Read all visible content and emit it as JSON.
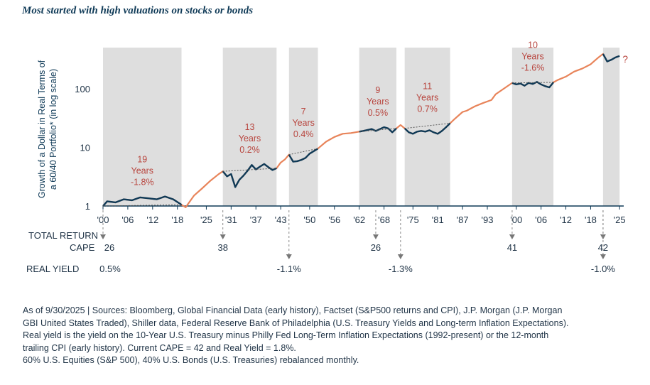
{
  "title": "Most started with high valuations on stocks or bonds",
  "chart_data": {
    "type": "line",
    "ylabel": "Growth of a Dollar in Real Terms of a 60/40 Portfolio* (in log scale)",
    "ylabel_lines": [
      "Growth of a Dollar in Real Terms of",
      "a 60/40 Portfolio* (in log scale)"
    ],
    "yscale": "log",
    "ylim": [
      1,
      500
    ],
    "xlim": [
      1900,
      2026
    ],
    "x_tick_labels": [
      "'00",
      "'06",
      "'12",
      "'18",
      "'25",
      "'31",
      "'37",
      "'43",
      "'50",
      "'56",
      "'62",
      "'68",
      "'75",
      "'81",
      "'87",
      "'93",
      "'00",
      "'06",
      "'12",
      "'18",
      "'25"
    ],
    "x_tick_years": [
      1900,
      1906,
      1912,
      1918,
      1925,
      1931,
      1937,
      1943,
      1950,
      1956,
      1962,
      1968,
      1975,
      1981,
      1987,
      1993,
      2000,
      2006,
      2012,
      2018,
      2025
    ],
    "y_ticks": [
      1,
      10,
      100
    ],
    "y_tick_labels": [
      "1",
      "10",
      "100"
    ],
    "series": [
      {
        "color": "#e8845a",
        "x": [
          1900,
          1901,
          1903,
          1905,
          1907,
          1909,
          1911,
          1913,
          1915,
          1917,
          1919,
          1920,
          1922,
          1924,
          1926,
          1928,
          1929,
          1930,
          1931,
          1932,
          1933,
          1934,
          1935,
          1936,
          1937,
          1938,
          1939,
          1940,
          1941,
          1942,
          1943,
          1944,
          1945,
          1946,
          1947,
          1948,
          1949,
          1950,
          1952,
          1954,
          1956,
          1958,
          1960,
          1962,
          1963,
          1965,
          1966,
          1968,
          1969,
          1970,
          1971,
          1972,
          1973,
          1974,
          1975,
          1976,
          1977,
          1978,
          1979,
          1980,
          1981,
          1982,
          1983,
          1985,
          1987,
          1988,
          1990,
          1992,
          1994,
          1995,
          1997,
          1999,
          2000,
          2001,
          2002,
          2003,
          2004,
          2005,
          2006,
          2007,
          2008,
          2009,
          2010,
          2012,
          2014,
          2016,
          2018,
          2019,
          2020,
          2021,
          2022,
          2023,
          2024,
          2025
        ],
        "values": [
          1.0,
          1.2,
          1.15,
          1.3,
          1.25,
          1.4,
          1.35,
          1.3,
          1.45,
          1.3,
          1.05,
          0.95,
          1.5,
          2.0,
          2.7,
          3.5,
          3.9,
          3.2,
          3.5,
          2.1,
          2.8,
          3.3,
          4.0,
          5.0,
          4.2,
          4.7,
          5.2,
          4.6,
          4.1,
          4.4,
          5.5,
          6.2,
          7.5,
          5.7,
          5.8,
          6.1,
          6.6,
          7.8,
          9.5,
          12.5,
          15.0,
          17.0,
          17.5,
          18.5,
          19.0,
          20.5,
          19.0,
          22.0,
          21.0,
          18.0,
          21.0,
          24.0,
          21.0,
          18.0,
          17.0,
          18.5,
          19.0,
          18.5,
          19.5,
          18.0,
          17.0,
          19.0,
          22.0,
          30.0,
          40.0,
          42.0,
          50.0,
          57.0,
          64.0,
          80.0,
          100.0,
          125.0,
          118.0,
          122.0,
          112.0,
          125.0,
          120.0,
          130.0,
          118.0,
          110.0,
          105.0,
          128.0,
          140.0,
          160.0,
          195.0,
          220.0,
          260.0,
          300.0,
          345.0,
          390.0,
          290.0,
          310.0,
          340.0,
          360.0
        ]
      }
    ],
    "annotations": [
      {
        "period": "19 Years",
        "real_return": "-1.8%",
        "start": 1900,
        "end": 1919
      },
      {
        "period": "13 Years",
        "real_return": "0.2%",
        "start": 1929,
        "end": 1942
      },
      {
        "period": "7 Years",
        "real_return": "0.4%",
        "start": 1945,
        "end": 1952
      },
      {
        "period": "9 Years",
        "real_return": "0.5%",
        "start": 1962,
        "end": 1971
      },
      {
        "period": "11 Years",
        "real_return": "0.7%",
        "start": 1973,
        "end": 1984
      },
      {
        "period": "10 Years",
        "real_return": "-1.6%",
        "start": 1999,
        "end": 2009
      },
      {
        "period": "",
        "real_return": "?",
        "start": 2021,
        "end": 2025
      }
    ],
    "markers": {
      "total_return_label": "TOTAL RETURN",
      "cape_label": "CAPE",
      "real_yield_label": "REAL YIELD",
      "cape": [
        {
          "year": 1900,
          "value": "26"
        },
        {
          "year": 1929,
          "value": "38"
        },
        {
          "year": 1966,
          "value": "26"
        },
        {
          "year": 1999,
          "value": "41"
        },
        {
          "year": 2021,
          "value": "42"
        }
      ],
      "real_yield": [
        {
          "year": 1900,
          "value": "0.5%"
        },
        {
          "year": 1945,
          "value": "-1.1%"
        },
        {
          "year": 1972,
          "value": "-1.3%"
        },
        {
          "year": 2021,
          "value": "-1.0%"
        }
      ]
    },
    "colors": {
      "orange_line": "#e8845a",
      "navy_line": "#0f3a57",
      "shade": "#dedede",
      "annotation_text": "#b8463f",
      "axis_text": "#1f3346"
    }
  },
  "footnote": {
    "lines": [
      "As of 9/30/2025 | Sources: Bloomberg, Global Financial Data (early history), Factset (S&P500 returns and CPI), J.P. Morgan (J.P. Morgan",
      "GBI United States Traded), Shiller data, Federal Reserve Bank of Philadelphia (U.S. Treasury Yields and Long-term Inflation Expectations).",
      "Real yield is the yield on the 10-Year U.S. Treasury minus Philly Fed Long-Term Inflation Expectations (1992-present) or the 12-month",
      "trailing CPI (early history). Current CAPE = 42 and Real Yield = 1.8%.",
      "60% U.S. Equities (S&P 500), 40% U.S. Bonds (U.S. Treasuries) rebalanced monthly."
    ]
  }
}
